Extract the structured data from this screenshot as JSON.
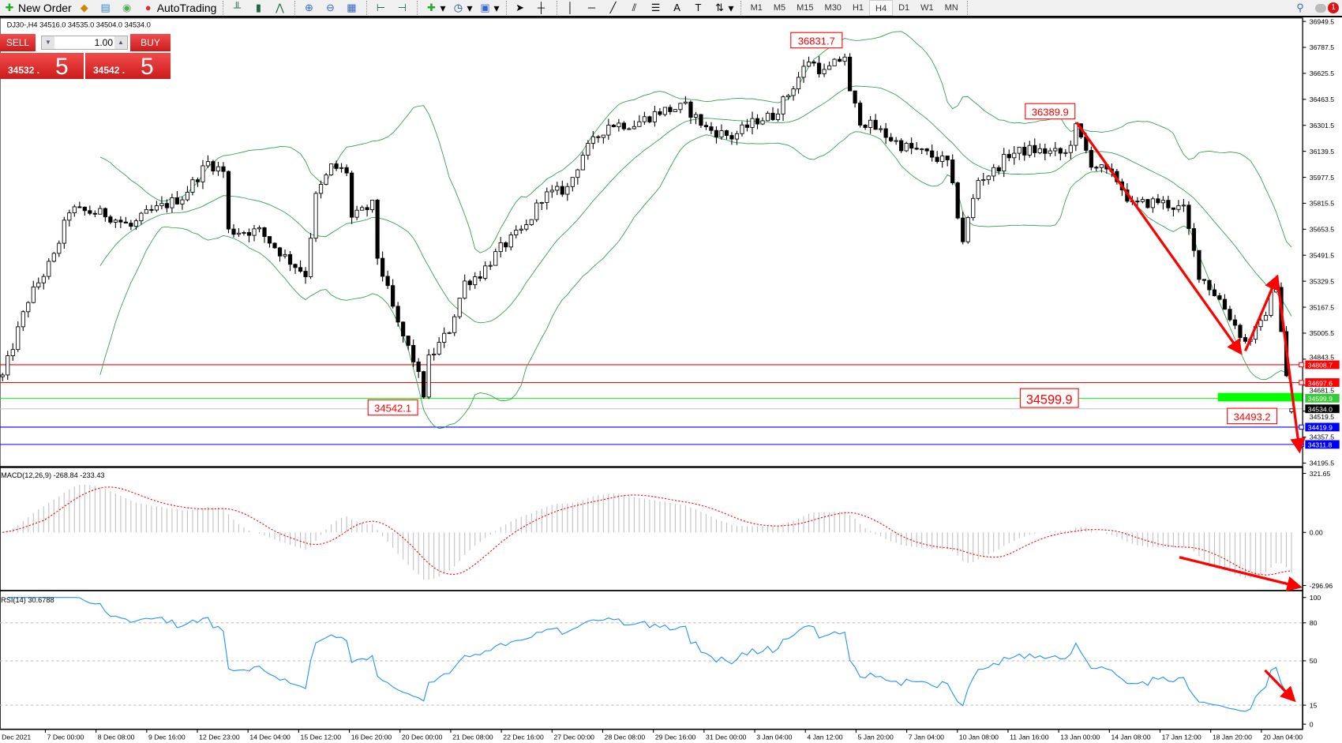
{
  "toolbar": {
    "new_order": "New Order",
    "autotrading": "AutoTrading",
    "timeframes": [
      "M1",
      "M5",
      "M15",
      "M30",
      "H1",
      "H4",
      "D1",
      "W1",
      "MN"
    ],
    "active_timeframe": "H4",
    "notification_count": "1"
  },
  "trade_panel": {
    "sell_label": "SELL",
    "buy_label": "BUY",
    "lot": "1.00",
    "bid_main": "34532",
    "bid_pip": "5",
    "ask_main": "34542",
    "ask_pip": "5"
  },
  "chart": {
    "symbol_info": "DJ30-,H4  34516.0 34535.0 34504.0 34534.0",
    "price_ticks": [
      "36949.5",
      "36787.5",
      "36625.5",
      "36463.5",
      "36301.5",
      "36139.5",
      "35977.5",
      "35815.5",
      "35653.5",
      "35491.5",
      "35329.5",
      "35167.5",
      "35005.5",
      "34843.5",
      "34681.5",
      "34519.5",
      "34357.5",
      "34195.5"
    ],
    "price_range": [
      34195.5,
      36949.5
    ],
    "horizontal_lines": [
      {
        "price": 34808.7,
        "label": "34808.7",
        "color": "#ff0000"
      },
      {
        "price": 34697.6,
        "label": "34697.6",
        "color": "#ff0000"
      },
      {
        "price": 34599.9,
        "label": "34599.9",
        "color": "#00ff00"
      },
      {
        "price": 34534.0,
        "label": "34534.0",
        "color": "#000000"
      },
      {
        "price": 34419.9,
        "label": "34419.9",
        "color": "#0000ff"
      },
      {
        "price": 34311.8,
        "label": "34311.8",
        "color": "#0000ff"
      }
    ],
    "price_annotations": [
      "36831.7",
      "36389.9",
      "34542.1",
      "34599.9",
      "34493.2"
    ],
    "time_labels": [
      "Dec 2021",
      "7 Dec 00:00",
      "8 Dec 08:00",
      "9 Dec 16:00",
      "12 Dec 23:00",
      "14 Dec 04:00",
      "15 Dec 12:00",
      "16 Dec 20:00",
      "20 Dec 00:00",
      "21 Dec 08:00",
      "22 Dec 16:00",
      "27 Dec 00:00",
      "28 Dec 08:00",
      "29 Dec 16:00",
      "31 Dec 00:00",
      "3 Jan 04:00",
      "4 Jan 12:00",
      "5 Jan 20:00",
      "7 Jan 04:00",
      "10 Jan 08:00",
      "11 Jan 16:00",
      "13 Jan 00:00",
      "14 Jan 08:00",
      "17 Jan 12:00",
      "18 Jan 20:00",
      "20 Jan 04:00"
    ],
    "close_path": [
      [
        0,
        34734
      ],
      [
        5,
        35215
      ],
      [
        10,
        35481
      ],
      [
        13,
        35775
      ],
      [
        20,
        35748
      ],
      [
        25,
        35668
      ],
      [
        28,
        35748
      ],
      [
        35,
        35855
      ],
      [
        40,
        36069
      ],
      [
        43,
        36015
      ],
      [
        44,
        35642
      ],
      [
        50,
        35642
      ],
      [
        55,
        35481
      ],
      [
        59,
        35375
      ],
      [
        61,
        35855
      ],
      [
        64,
        36042
      ],
      [
        67,
        36015
      ],
      [
        68,
        35722
      ],
      [
        72,
        35802
      ],
      [
        73,
        35481
      ],
      [
        77,
        35055
      ],
      [
        80,
        34841
      ],
      [
        82,
        34628
      ],
      [
        83,
        34841
      ],
      [
        87,
        35028
      ],
      [
        90,
        35322
      ],
      [
        93,
        35375
      ],
      [
        97,
        35535
      ],
      [
        102,
        35668
      ],
      [
        105,
        35855
      ],
      [
        110,
        35908
      ],
      [
        113,
        36122
      ],
      [
        118,
        36309
      ],
      [
        123,
        36309
      ],
      [
        128,
        36389
      ],
      [
        133,
        36416
      ],
      [
        137,
        36282
      ],
      [
        142,
        36229
      ],
      [
        147,
        36336
      ],
      [
        150,
        36362
      ],
      [
        153,
        36496
      ],
      [
        157,
        36709
      ],
      [
        160,
        36629
      ],
      [
        164,
        36736
      ],
      [
        165,
        36496
      ],
      [
        167,
        36336
      ],
      [
        170,
        36282
      ],
      [
        175,
        36176
      ],
      [
        180,
        36122
      ],
      [
        184,
        36069
      ],
      [
        187,
        35586
      ],
      [
        190,
        35962
      ],
      [
        193,
        36015
      ],
      [
        196,
        36122
      ],
      [
        200,
        36149
      ],
      [
        207,
        36122
      ],
      [
        209,
        36282
      ],
      [
        212,
        36069
      ],
      [
        217,
        35962
      ],
      [
        220,
        35802
      ],
      [
        225,
        35828
      ],
      [
        230,
        35775
      ],
      [
        233,
        35375
      ],
      [
        237,
        35215
      ],
      [
        242,
        34948
      ],
      [
        245,
        35055
      ],
      [
        248,
        35322
      ],
      [
        250,
        34734
      ],
      [
        251,
        34534
      ]
    ],
    "last_bar": {
      "open": 34516.0,
      "high": 34535.0,
      "low": 34504.0,
      "close": 34534.0
    }
  },
  "macd": {
    "label": "MACD(12,26,9) -268.84 -233.43",
    "ticks": [
      "321.65",
      "0.00",
      "-296.96"
    ],
    "range": [
      -296.96,
      321.65
    ]
  },
  "rsi": {
    "label": "RSI(14) 30.6788",
    "ticks": [
      "100",
      "80",
      "50",
      "15",
      "0"
    ],
    "levels": [
      80,
      50,
      15
    ]
  },
  "colors": {
    "bands": "#2e9e4e",
    "annotation": "#ff0000",
    "rsi": "#1e90ff",
    "macd_signal": "#ff0000",
    "macd_hist": "#c0c0c0"
  }
}
